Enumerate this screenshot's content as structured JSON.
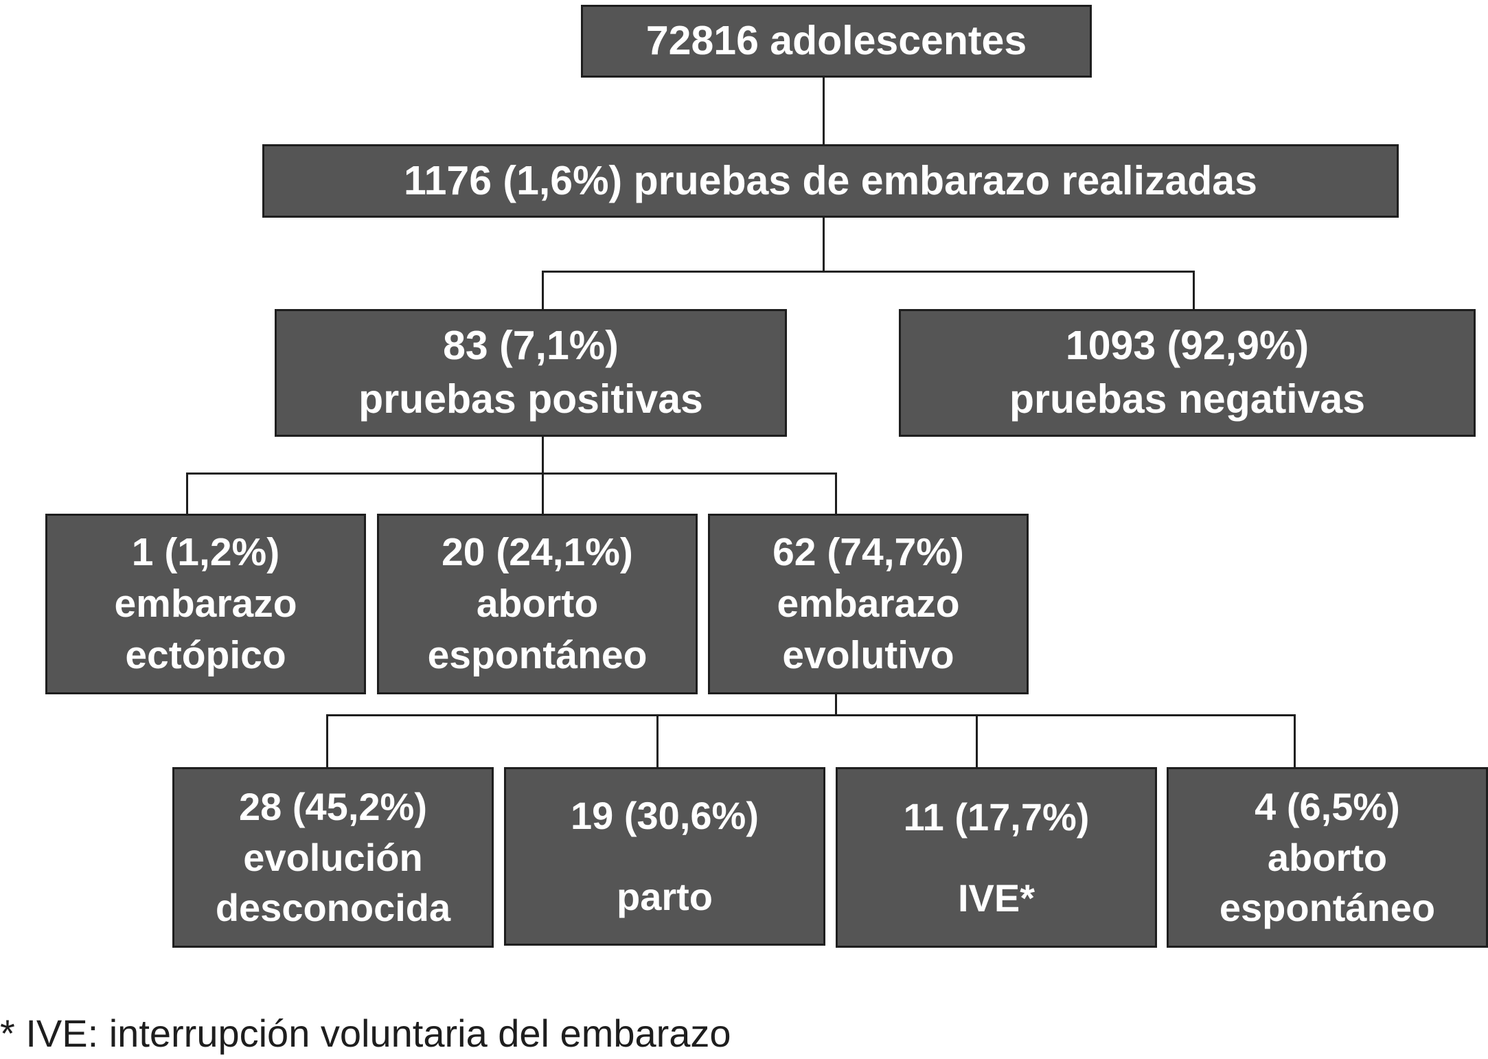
{
  "nodes": {
    "root": [
      "72816 adolescentes"
    ],
    "tests": [
      "1176 (1,6%) pruebas de embarazo realizadas"
    ],
    "positive": [
      "83 (7,1%)",
      "pruebas positivas"
    ],
    "negative": [
      "1093 (92,9%)",
      "pruebas negativas"
    ],
    "ectopic": [
      "1 (1,2%)",
      "embarazo",
      "ectópico"
    ],
    "spont_abortion": [
      "20 (24,1%)",
      "aborto",
      "espontáneo"
    ],
    "evolving": [
      "62 (74,7%)",
      "embarazo",
      "evolutivo"
    ],
    "unknown": [
      "28 (45,2%)",
      "evolución",
      "desconocida"
    ],
    "birth": [
      "19 (30,6%)",
      "parto"
    ],
    "ive": [
      "11 (17,7%)",
      "IVE*"
    ],
    "late_abortion": [
      "4 (6,5%)",
      "aborto",
      "espontáneo"
    ]
  },
  "footnote": "* IVE: interrupción voluntaria del embarazo"
}
